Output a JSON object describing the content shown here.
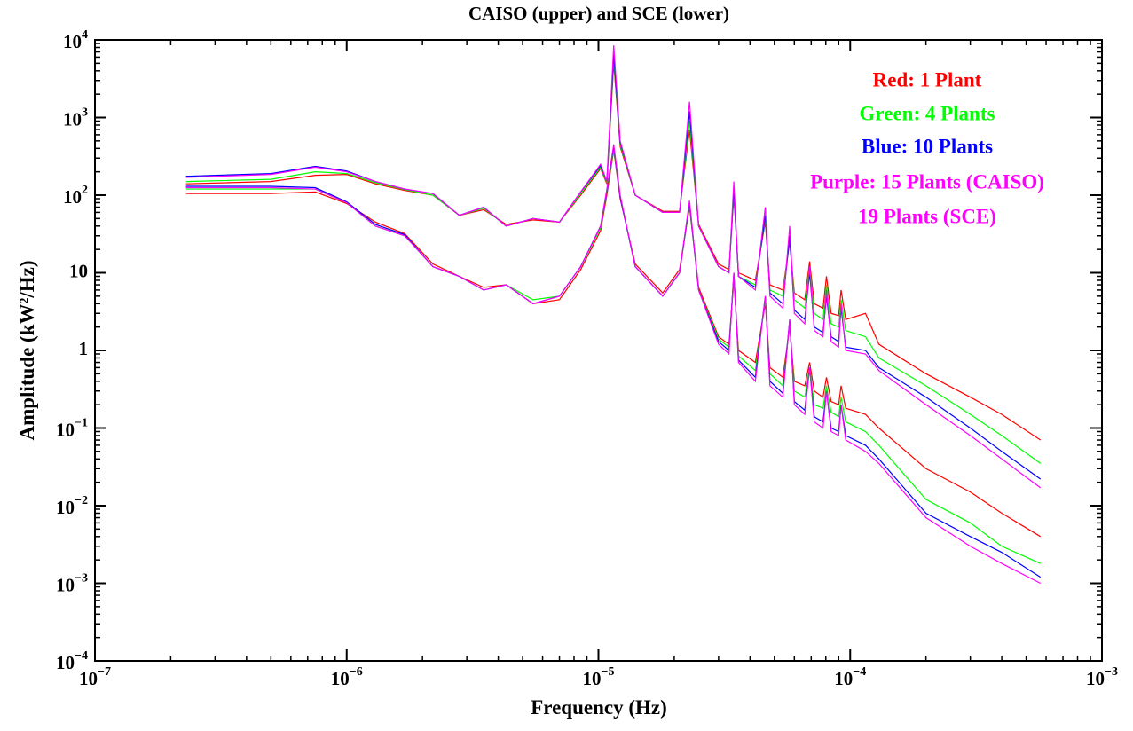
{
  "chart_data": {
    "type": "line",
    "title": "CAISO (upper) and SCE (lower)",
    "x_label": "Frequency (Hz)",
    "y_label": "Amplitude (kW²/Hz)",
    "xscale": "log",
    "yscale": "log",
    "xlim": [
      1e-07,
      0.001
    ],
    "ylim": [
      0.0001,
      10000.0
    ],
    "xticks": [
      {
        "value": 1e-07,
        "label": "10",
        "sup": "−7"
      },
      {
        "value": 1e-06,
        "label": "10",
        "sup": "−6"
      },
      {
        "value": 1e-05,
        "label": "10",
        "sup": "−5"
      },
      {
        "value": 0.0001,
        "label": "10",
        "sup": "−4"
      },
      {
        "value": 0.001,
        "label": "10",
        "sup": "−3"
      }
    ],
    "yticks": [
      {
        "value": 0.0001,
        "label": "10",
        "sup": "−4"
      },
      {
        "value": 0.001,
        "label": "10",
        "sup": "−3"
      },
      {
        "value": 0.01,
        "label": "10",
        "sup": "−2"
      },
      {
        "value": 0.1,
        "label": "10",
        "sup": "−1"
      },
      1,
      10,
      {
        "value": 100,
        "label": "10",
        "sup": "2"
      },
      {
        "value": 1000,
        "label": "10",
        "sup": "3"
      },
      {
        "value": 10000,
        "label": "10",
        "sup": "4"
      }
    ],
    "x": [
      2.3e-07,
      5e-07,
      7.5e-07,
      1e-06,
      1.3e-06,
      1.7e-06,
      2.2e-06,
      2.8e-06,
      3.5e-06,
      4.3e-06,
      5.5e-06,
      7e-06,
      8.5e-06,
      1.02e-05,
      1.08e-05,
      1.15e-05,
      1.22e-05,
      1.4e-05,
      1.8e-05,
      2.1e-05,
      2.3e-05,
      2.5e-05,
      3e-05,
      3.3e-05,
      3.45e-05,
      3.6e-05,
      4.2e-05,
      4.6e-05,
      4.8e-05,
      5.4e-05,
      5.75e-05,
      6e-05,
      6.6e-05,
      6.9e-05,
      7.2e-05,
      7.8e-05,
      8.05e-05,
      8.4e-05,
      9e-05,
      9.2e-05,
      9.6e-05,
      0.000115,
      0.00013,
      0.0002,
      0.0003,
      0.0004,
      0.00057
    ],
    "series": [
      {
        "color": "#ff0000",
        "values": [
          105,
          105,
          110,
          78,
          45,
          32,
          13,
          9,
          6.5,
          7,
          4,
          4.5,
          11,
          35,
          100,
          380,
          90,
          13,
          5.5,
          11,
          70,
          6.5,
          1.5,
          1.2,
          8,
          1,
          0.7,
          4,
          0.6,
          0.45,
          2,
          0.4,
          0.35,
          0.7,
          0.3,
          0.25,
          0.45,
          0.22,
          0.2,
          0.35,
          0.18,
          0.15,
          0.1,
          0.03,
          0.015,
          0.008,
          0.004
        ]
      },
      {
        "color": "#00ff00",
        "values": [
          120,
          120,
          120,
          80,
          40,
          30,
          12,
          9,
          6,
          7,
          4.5,
          5,
          12,
          38,
          110,
          400,
          95,
          12,
          5,
          10,
          75,
          6,
          1.4,
          1.1,
          9,
          0.85,
          0.55,
          4.5,
          0.5,
          0.35,
          2.2,
          0.3,
          0.25,
          0.6,
          0.2,
          0.18,
          0.35,
          0.16,
          0.14,
          0.25,
          0.12,
          0.09,
          0.06,
          0.012,
          0.006,
          0.003,
          0.0018
        ]
      },
      {
        "color": "#0000ff",
        "values": [
          130,
          130,
          125,
          82,
          42,
          31,
          12,
          9,
          6,
          7,
          4,
          5,
          12,
          40,
          115,
          430,
          95,
          12,
          5,
          10,
          80,
          6,
          1.3,
          1,
          10,
          0.75,
          0.45,
          5,
          0.4,
          0.28,
          2.5,
          0.22,
          0.17,
          0.6,
          0.14,
          0.12,
          0.3,
          0.1,
          0.09,
          0.2,
          0.08,
          0.06,
          0.04,
          0.008,
          0.004,
          0.0025,
          0.0012
        ]
      },
      {
        "color": "#ff00ff",
        "values": [
          125,
          125,
          120,
          80,
          40,
          30,
          12,
          9,
          6,
          7,
          4,
          5,
          12,
          40,
          120,
          450,
          100,
          12,
          5,
          10,
          85,
          6,
          1.2,
          0.9,
          10,
          0.7,
          0.4,
          5,
          0.35,
          0.25,
          2.5,
          0.2,
          0.15,
          0.6,
          0.12,
          0.1,
          0.3,
          0.09,
          0.08,
          0.2,
          0.07,
          0.05,
          0.035,
          0.007,
          0.003,
          0.0018,
          0.001
        ]
      },
      {
        "color": "#ff0000",
        "values": [
          140,
          150,
          180,
          185,
          140,
          115,
          100,
          55,
          65,
          42,
          48,
          45,
          100,
          220,
          140,
          5000,
          420,
          100,
          62,
          62,
          700,
          42,
          13,
          11,
          100,
          10,
          8,
          45,
          7,
          6,
          25,
          5.5,
          4.5,
          14,
          4,
          3.5,
          9,
          3,
          2.8,
          6,
          2.5,
          3,
          1.2,
          0.5,
          0.25,
          0.15,
          0.07
        ]
      },
      {
        "color": "#00ff00",
        "values": [
          150,
          160,
          200,
          190,
          145,
          118,
          100,
          55,
          68,
          40,
          50,
          45,
          105,
          230,
          145,
          5500,
          450,
          100,
          60,
          60,
          900,
          40,
          12,
          10,
          110,
          9,
          7,
          50,
          6,
          5,
          28,
          4.5,
          3.5,
          12,
          3,
          2.5,
          7,
          2.2,
          2,
          4.5,
          1.8,
          1.5,
          0.8,
          0.35,
          0.15,
          0.08,
          0.035
        ]
      },
      {
        "color": "#0000ff",
        "values": [
          175,
          190,
          235,
          205,
          150,
          120,
          105,
          55,
          70,
          40,
          50,
          45,
          110,
          240,
          150,
          6500,
          480,
          100,
          60,
          60,
          1200,
          40,
          12,
          10,
          120,
          9,
          6.5,
          55,
          5.5,
          4,
          30,
          3.3,
          2.5,
          10,
          2,
          1.7,
          5,
          1.5,
          1.3,
          3.5,
          1.1,
          1,
          0.6,
          0.25,
          0.1,
          0.05,
          0.022
        ]
      },
      {
        "color": "#ff00ff",
        "values": [
          170,
          185,
          230,
          200,
          150,
          120,
          105,
          55,
          70,
          40,
          50,
          45,
          110,
          250,
          150,
          8500,
          500,
          100,
          60,
          60,
          1600,
          40,
          12,
          10,
          150,
          9,
          6,
          70,
          5,
          3.5,
          40,
          3,
          2.2,
          12,
          1.8,
          1.5,
          6,
          1.3,
          1.1,
          4,
          1,
          0.9,
          0.55,
          0.2,
          0.08,
          0.04,
          0.017
        ]
      }
    ],
    "annotations": [
      {
        "text": "Red: 1 Plant",
        "color": "#ff0000"
      },
      {
        "text": "Green: 4 Plants",
        "color": "#00ff00"
      },
      {
        "text": "Blue: 10 Plants",
        "color": "#0000ff"
      },
      {
        "text": "Purple: 15 Plants (CAISO)",
        "color": "#ff00ff"
      },
      {
        "text": "19 Plants (SCE)",
        "color": "#ff00ff"
      }
    ]
  }
}
